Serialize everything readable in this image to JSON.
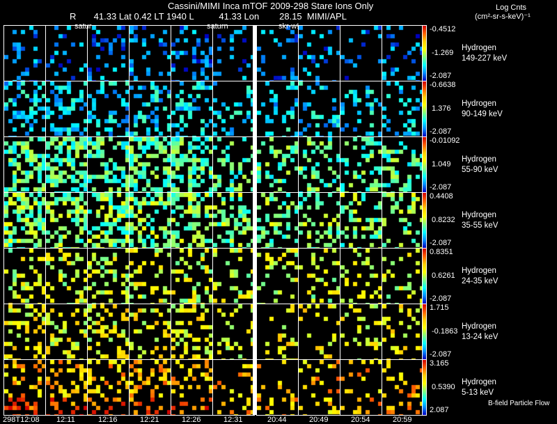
{
  "header": {
    "title": "Cassini/MIMI Inca mTOF  2009-298   Stare   Ions Only",
    "subtitle": "R       41.33 Lat 0.42 LT 1940 L          41.33 Lon        28.15  MIMI/APL",
    "units_line1": "Log Cnts",
    "units_line2": "(cm²-sr-s-keV)⁻¹"
  },
  "overlay_labels": [
    "satur",
    "saturn",
    "skr-w!"
  ],
  "footer_note": "B-field Particle Flow",
  "chart_data": {
    "type": "heatmap",
    "title": "Cassini/MIMI Inca mTOF  2009-298   Stare   Ions Only",
    "columns": [
      "298T12:08",
      "12:11",
      "12:16",
      "12:21",
      "12:26",
      "12:31",
      "20:44",
      "20:49",
      "20:54",
      "20:59"
    ],
    "rows": [
      {
        "species": "Hydrogen",
        "energy": "149-227 keV",
        "max": "-0.4512",
        "mid": "-1.269",
        "min": "-2.087",
        "density": 0.22,
        "level": 0.15
      },
      {
        "species": "Hydrogen",
        "energy": "90-149 keV",
        "max": "-0.6638",
        "mid": "1.376",
        "min": "-2.087",
        "density": 0.35,
        "level": 0.25
      },
      {
        "species": "Hydrogen",
        "energy": "55-90 keV",
        "max": "-0.01092",
        "mid": "1.049",
        "min": "-2.087",
        "density": 0.5,
        "level": 0.4
      },
      {
        "species": "Hydrogen",
        "energy": "35-55 keV",
        "max": "0.4408",
        "mid": "0.8232",
        "min": "-2.087",
        "density": 0.5,
        "level": 0.45
      },
      {
        "species": "Hydrogen",
        "energy": "24-35 keV",
        "max": "0.8351",
        "mid": "0.6261",
        "min": "-2.087",
        "density": 0.3,
        "level": 0.55
      },
      {
        "species": "Hydrogen",
        "energy": "13-24 keV",
        "max": "1.715",
        "mid": "-0.1863",
        "min": "-2.087",
        "density": 0.3,
        "level": 0.6
      },
      {
        "species": "Hydrogen",
        "energy": "5-13 keV",
        "max": "3.165",
        "mid": "0.5390",
        "min": "2.087",
        "density": 0.3,
        "level": 0.72
      }
    ]
  }
}
